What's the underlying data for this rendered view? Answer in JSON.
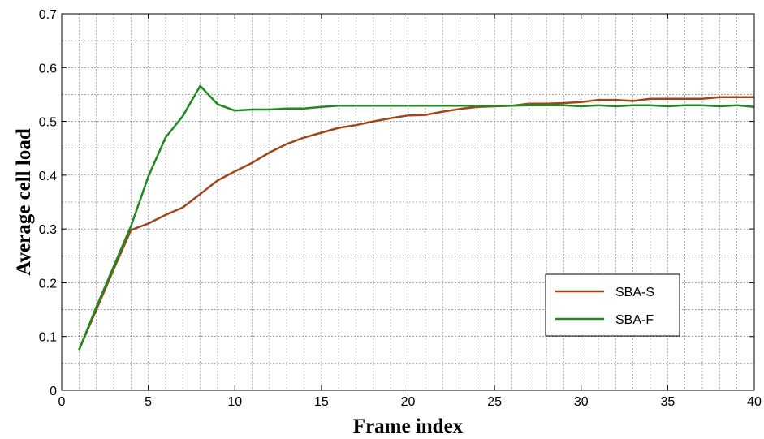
{
  "chart_data": {
    "type": "line",
    "xlabel": "Frame index",
    "ylabel": "Average cell load",
    "xlim": [
      0,
      40
    ],
    "ylim": [
      0,
      0.7
    ],
    "grid": true,
    "grid_style": "dashed major and minor",
    "legend_position": "lower-right",
    "x_ticks": [
      "0",
      "5",
      "10",
      "15",
      "20",
      "25",
      "30",
      "35",
      "40"
    ],
    "y_ticks": [
      "0",
      "0.1",
      "0.2",
      "0.3",
      "0.4",
      "0.5",
      "0.6",
      "0.7"
    ],
    "x": [
      1,
      2,
      3,
      4,
      5,
      6,
      7,
      8,
      9,
      10,
      11,
      12,
      13,
      14,
      15,
      16,
      17,
      18,
      19,
      20,
      21,
      22,
      23,
      24,
      25,
      26,
      27,
      28,
      29,
      30,
      31,
      32,
      33,
      34,
      35,
      36,
      37,
      38,
      39,
      40
    ],
    "series": [
      {
        "name": "SBA-S",
        "color": "#a0461b",
        "values": [
          0.075,
          0.15,
          0.225,
          0.298,
          0.31,
          0.326,
          0.34,
          0.365,
          0.39,
          0.407,
          0.423,
          0.442,
          0.458,
          0.47,
          0.479,
          0.488,
          0.493,
          0.5,
          0.506,
          0.511,
          0.512,
          0.518,
          0.523,
          0.527,
          0.528,
          0.529,
          0.533,
          0.533,
          0.534,
          0.536,
          0.54,
          0.54,
          0.538,
          0.542,
          0.542,
          0.542,
          0.542,
          0.545,
          0.545,
          0.545
        ]
      },
      {
        "name": "SBA-F",
        "color": "#1f8a1f",
        "values": [
          0.075,
          0.155,
          0.23,
          0.305,
          0.397,
          0.47,
          0.51,
          0.566,
          0.532,
          0.52,
          0.522,
          0.522,
          0.524,
          0.524,
          0.527,
          0.529,
          0.529,
          0.529,
          0.529,
          0.529,
          0.529,
          0.529,
          0.529,
          0.529,
          0.529,
          0.529,
          0.53,
          0.53,
          0.53,
          0.528,
          0.53,
          0.528,
          0.53,
          0.53,
          0.528,
          0.53,
          0.53,
          0.528,
          0.53,
          0.527
        ]
      }
    ]
  }
}
